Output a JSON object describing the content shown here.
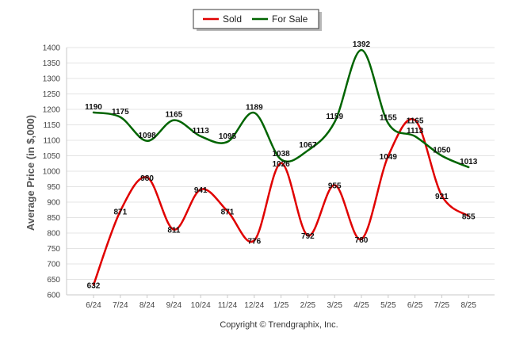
{
  "legend": {
    "sold_label": "Sold",
    "for_sale_label": "For Sale"
  },
  "copyright": "Copyright © Trendgraphix, Inc.",
  "chart_data": {
    "type": "line",
    "title": "",
    "xlabel": "",
    "ylabel": "Average Price (in $,000)",
    "categories": [
      "6/24",
      "7/24",
      "8/24",
      "9/24",
      "10/24",
      "11/24",
      "12/24",
      "1/25",
      "2/25",
      "3/25",
      "4/25",
      "5/25",
      "6/25",
      "7/25",
      "8/25"
    ],
    "ylim": [
      600,
      1400
    ],
    "yticks": [
      600,
      650,
      700,
      750,
      800,
      850,
      900,
      950,
      1000,
      1050,
      1100,
      1150,
      1200,
      1250,
      1300,
      1350,
      1400
    ],
    "grid": true,
    "legend_position": "top-center",
    "series": [
      {
        "name": "Sold",
        "color": "#e00000",
        "values": [
          632,
          871,
          980,
          811,
          941,
          871,
          776,
          1026,
          792,
          955,
          780,
          1049,
          1165,
          921,
          855
        ]
      },
      {
        "name": "For Sale",
        "color": "#006400",
        "values": [
          1190,
          1175,
          1098,
          1165,
          1113,
          1095,
          1189,
          1038,
          1067,
          1159,
          1392,
          1155,
          1113,
          1050,
          1013
        ]
      }
    ]
  }
}
